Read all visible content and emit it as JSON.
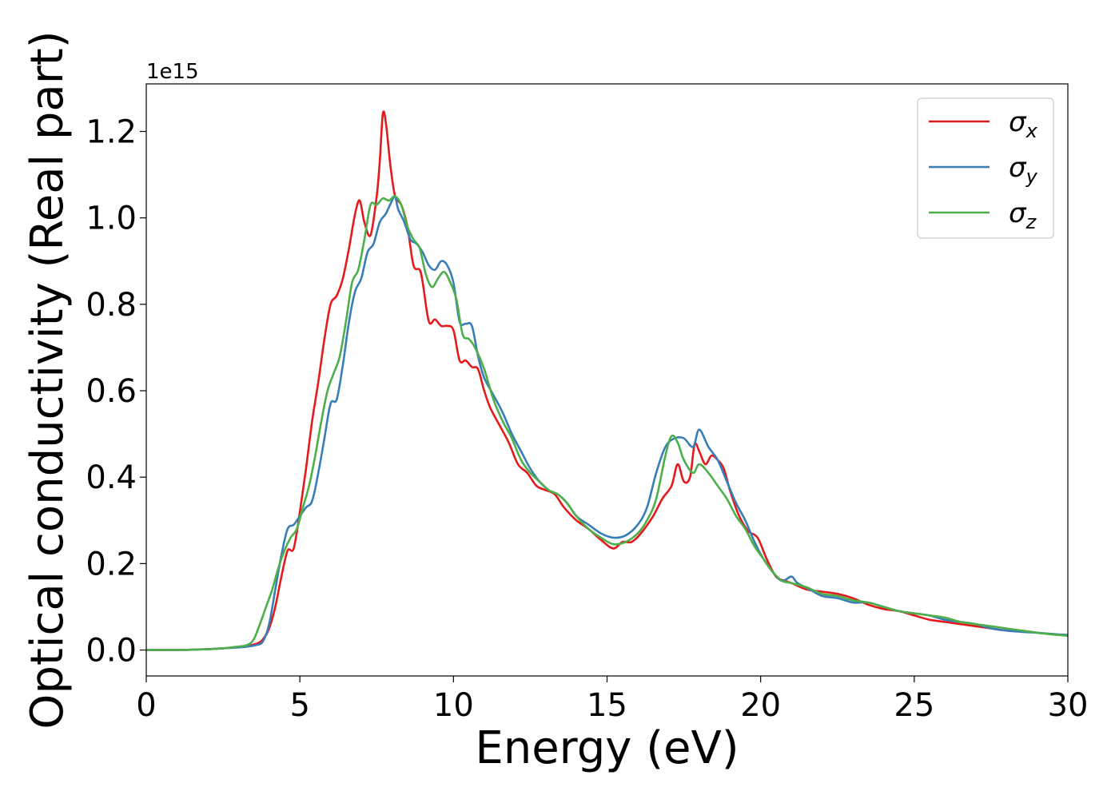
{
  "chart_data": {
    "type": "line",
    "xlabel": "Energy (eV)",
    "ylabel": "Optical conductivity (Real part)",
    "y_offset_label": "1e15",
    "xlim": [
      0,
      30
    ],
    "ylim": [
      -0.06,
      1.31
    ],
    "xticks": [
      0,
      5,
      10,
      15,
      20,
      25,
      30
    ],
    "xtick_labels": [
      "0",
      "5",
      "10",
      "15",
      "20",
      "25",
      "30"
    ],
    "yticks": [
      0.0,
      0.2,
      0.4,
      0.6,
      0.8,
      1.0,
      1.2
    ],
    "ytick_labels": [
      "0.0",
      "0.2",
      "0.4",
      "0.6",
      "0.8",
      "1.0",
      "1.2"
    ],
    "grid": false,
    "legend_position": "top-right",
    "series": [
      {
        "name": "σx",
        "symbol": "σ",
        "subscript": "x",
        "color": "#e41a1c",
        "x": [
          0,
          1,
          2,
          2.5,
          3,
          3.3,
          3.6,
          3.8,
          4,
          4.2,
          4.4,
          4.6,
          4.8,
          5,
          5.2,
          5.4,
          5.6,
          5.8,
          6,
          6.2,
          6.4,
          6.6,
          6.8,
          6.95,
          7.1,
          7.3,
          7.5,
          7.6,
          7.7,
          7.8,
          7.95,
          8.1,
          8.3,
          8.5,
          8.7,
          8.9,
          9,
          9.2,
          9.4,
          9.6,
          9.8,
          10,
          10.2,
          10.4,
          10.6,
          10.8,
          11,
          11.2,
          11.5,
          11.8,
          12.1,
          12.4,
          12.7,
          13,
          13.3,
          13.6,
          14,
          14.4,
          14.8,
          15.2,
          15.5,
          15.8,
          16.1,
          16.5,
          16.8,
          17.1,
          17.3,
          17.5,
          17.7,
          17.85,
          18,
          18.2,
          18.4,
          18.6,
          18.8,
          19,
          19.3,
          19.6,
          19.9,
          20.2,
          20.5,
          20.8,
          21,
          21.5,
          22,
          22.5,
          23,
          23.5,
          24,
          24.5,
          25,
          25.5,
          26,
          26.5,
          27,
          27.5,
          28,
          28.5,
          29,
          29.5,
          30
        ],
        "y": [
          0,
          0,
          0.002,
          0.004,
          0.007,
          0.01,
          0.015,
          0.025,
          0.05,
          0.1,
          0.17,
          0.23,
          0.235,
          0.32,
          0.42,
          0.53,
          0.62,
          0.72,
          0.8,
          0.82,
          0.86,
          0.93,
          1.01,
          1.04,
          0.99,
          0.96,
          1.05,
          1.13,
          1.24,
          1.22,
          1.12,
          1.05,
          1.03,
          0.98,
          0.89,
          0.88,
          0.85,
          0.76,
          0.765,
          0.75,
          0.75,
          0.74,
          0.67,
          0.67,
          0.655,
          0.65,
          0.6,
          0.56,
          0.52,
          0.48,
          0.43,
          0.41,
          0.38,
          0.37,
          0.36,
          0.33,
          0.3,
          0.28,
          0.255,
          0.235,
          0.25,
          0.25,
          0.27,
          0.31,
          0.35,
          0.38,
          0.43,
          0.39,
          0.4,
          0.475,
          0.46,
          0.43,
          0.45,
          0.44,
          0.42,
          0.37,
          0.31,
          0.275,
          0.26,
          0.21,
          0.17,
          0.16,
          0.155,
          0.14,
          0.135,
          0.13,
          0.12,
          0.105,
          0.095,
          0.09,
          0.08,
          0.07,
          0.065,
          0.06,
          0.055,
          0.05,
          0.045,
          0.043,
          0.04,
          0.037,
          0.034
        ]
      },
      {
        "name": "σy",
        "symbol": "σ",
        "subscript": "y",
        "color": "#377eb8",
        "x": [
          0,
          1,
          2,
          2.5,
          3,
          3.3,
          3.6,
          3.8,
          4,
          4.2,
          4.4,
          4.6,
          4.8,
          5,
          5.2,
          5.4,
          5.6,
          5.8,
          6,
          6.2,
          6.4,
          6.6,
          6.8,
          7,
          7.2,
          7.4,
          7.6,
          7.8,
          8,
          8.1,
          8.2,
          8.4,
          8.6,
          8.8,
          9,
          9.2,
          9.4,
          9.6,
          9.8,
          10,
          10.2,
          10.4,
          10.6,
          10.8,
          11,
          11.3,
          11.6,
          11.9,
          12.2,
          12.5,
          12.8,
          13.1,
          13.4,
          13.7,
          14,
          14.4,
          14.8,
          15.2,
          15.6,
          16,
          16.3,
          16.6,
          16.9,
          17.2,
          17.5,
          17.8,
          18,
          18.3,
          18.6,
          18.9,
          19.2,
          19.5,
          19.8,
          20.1,
          20.4,
          20.7,
          21,
          21.2,
          21.6,
          22,
          22.5,
          23,
          23.5,
          24,
          24.5,
          25,
          25.5,
          26,
          26.5,
          27,
          27.5,
          28,
          28.5,
          29,
          29.5,
          30
        ],
        "y": [
          0,
          0,
          0.002,
          0.004,
          0.006,
          0.008,
          0.012,
          0.02,
          0.06,
          0.14,
          0.22,
          0.28,
          0.29,
          0.31,
          0.33,
          0.345,
          0.41,
          0.49,
          0.57,
          0.58,
          0.66,
          0.76,
          0.83,
          0.86,
          0.92,
          0.94,
          0.99,
          1.01,
          1.04,
          1.05,
          1.02,
          0.99,
          0.95,
          0.94,
          0.92,
          0.89,
          0.88,
          0.9,
          0.89,
          0.85,
          0.76,
          0.755,
          0.75,
          0.68,
          0.63,
          0.59,
          0.55,
          0.5,
          0.46,
          0.42,
          0.39,
          0.37,
          0.36,
          0.34,
          0.31,
          0.29,
          0.27,
          0.26,
          0.265,
          0.29,
          0.33,
          0.41,
          0.47,
          0.49,
          0.49,
          0.47,
          0.51,
          0.47,
          0.44,
          0.39,
          0.34,
          0.3,
          0.25,
          0.21,
          0.18,
          0.16,
          0.17,
          0.155,
          0.14,
          0.125,
          0.12,
          0.11,
          0.11,
          0.1,
          0.09,
          0.085,
          0.08,
          0.07,
          0.065,
          0.06,
          0.05,
          0.045,
          0.042,
          0.04,
          0.037,
          0.035
        ]
      },
      {
        "name": "σz",
        "symbol": "σ",
        "subscript": "z",
        "color": "#4daf4a",
        "x": [
          0,
          1,
          2,
          2.5,
          3,
          3.3,
          3.5,
          3.7,
          3.9,
          4.1,
          4.3,
          4.5,
          4.7,
          4.9,
          5.1,
          5.3,
          5.5,
          5.7,
          5.9,
          6.1,
          6.3,
          6.5,
          6.7,
          6.9,
          7.1,
          7.3,
          7.5,
          7.7,
          7.9,
          8.1,
          8.3,
          8.5,
          8.7,
          8.9,
          9.1,
          9.3,
          9.5,
          9.7,
          9.9,
          10.1,
          10.3,
          10.5,
          10.7,
          11,
          11.3,
          11.6,
          11.9,
          12.2,
          12.5,
          12.8,
          13.1,
          13.4,
          13.7,
          14,
          14.4,
          14.8,
          15.2,
          15.6,
          16,
          16.3,
          16.6,
          16.9,
          17.1,
          17.3,
          17.5,
          17.8,
          18,
          18.3,
          18.6,
          18.9,
          19.2,
          19.5,
          19.8,
          20.1,
          20.4,
          20.7,
          21,
          21.5,
          22,
          22.5,
          23,
          23.5,
          24,
          24.5,
          25,
          25.5,
          26,
          26.5,
          27,
          27.5,
          28,
          28.5,
          29,
          29.5,
          30
        ],
        "y": [
          0,
          0,
          0.002,
          0.004,
          0.008,
          0.012,
          0.025,
          0.06,
          0.1,
          0.14,
          0.19,
          0.23,
          0.26,
          0.28,
          0.33,
          0.38,
          0.45,
          0.53,
          0.6,
          0.64,
          0.68,
          0.76,
          0.85,
          0.88,
          0.95,
          1.03,
          1.03,
          1.045,
          1.04,
          1.05,
          1.03,
          0.98,
          0.95,
          0.93,
          0.87,
          0.84,
          0.86,
          0.875,
          0.85,
          0.81,
          0.73,
          0.72,
          0.7,
          0.65,
          0.58,
          0.53,
          0.49,
          0.44,
          0.41,
          0.39,
          0.37,
          0.36,
          0.34,
          0.31,
          0.28,
          0.26,
          0.245,
          0.25,
          0.27,
          0.3,
          0.35,
          0.45,
          0.495,
          0.48,
          0.44,
          0.41,
          0.43,
          0.41,
          0.38,
          0.35,
          0.31,
          0.28,
          0.24,
          0.21,
          0.18,
          0.16,
          0.155,
          0.145,
          0.13,
          0.125,
          0.115,
          0.11,
          0.1,
          0.09,
          0.085,
          0.08,
          0.075,
          0.065,
          0.06,
          0.055,
          0.05,
          0.045,
          0.04,
          0.036,
          0.033
        ]
      }
    ]
  }
}
